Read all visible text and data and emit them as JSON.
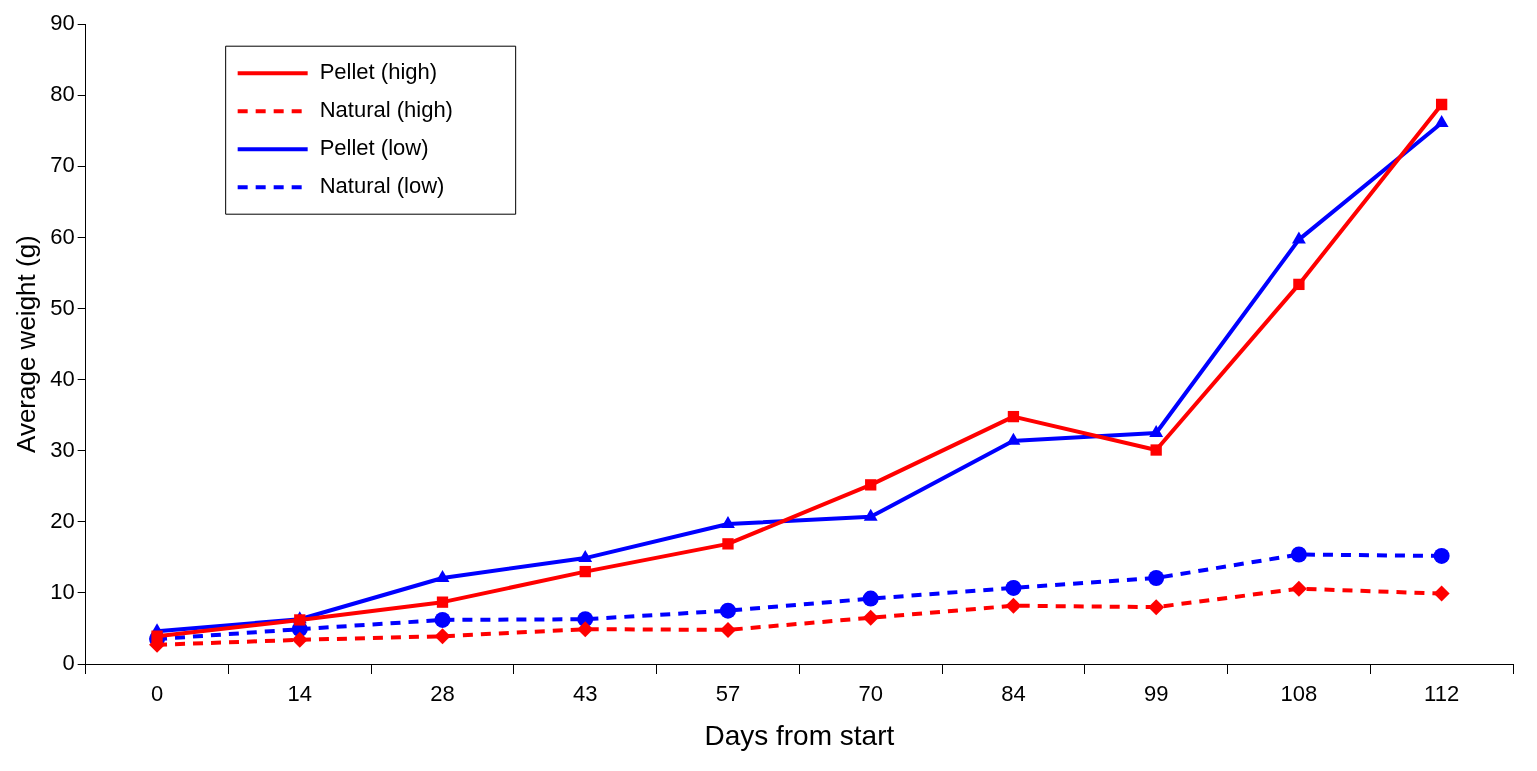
{
  "chart_data": {
    "type": "line",
    "xlabel": "Days from start",
    "ylabel": "Average weight (g)",
    "categories": [
      "0",
      "14",
      "28",
      "43",
      "57",
      "70",
      "84",
      "99",
      "108",
      "112"
    ],
    "ylim": [
      0,
      90
    ],
    "yticks": [
      0,
      10,
      20,
      30,
      40,
      50,
      60,
      70,
      80,
      90
    ],
    "grid": false,
    "legend": "top left",
    "series": [
      {
        "name": "Pellet (high)",
        "color": "#ff0000",
        "marker": "square",
        "line_style": "solid",
        "values": [
          3.9,
          6.2,
          8.7,
          13,
          16.9,
          25.2,
          34.8,
          30.1,
          53.4,
          78.7
        ]
      },
      {
        "name": "Natural (high)",
        "color": "#ff0000",
        "marker": "diamond",
        "line_style": "dashed",
        "values": [
          2.7,
          3.4,
          3.9,
          4.9,
          4.8,
          6.5,
          8.2,
          8.0,
          10.6,
          9.9
        ]
      },
      {
        "name": "Pellet (low)",
        "color": "#0000ff",
        "marker": "triangle",
        "line_style": "solid",
        "values": [
          4.6,
          6.3,
          12.1,
          14.9,
          19.7,
          20.7,
          31.4,
          32.5,
          59.7,
          76.1
        ]
      },
      {
        "name": "Natural (low)",
        "color": "#0000ff",
        "marker": "circle",
        "line_style": "dashed",
        "values": [
          3.5,
          4.9,
          6.2,
          6.3,
          7.5,
          9.2,
          10.7,
          12.1,
          15.4,
          15.2
        ]
      }
    ]
  }
}
